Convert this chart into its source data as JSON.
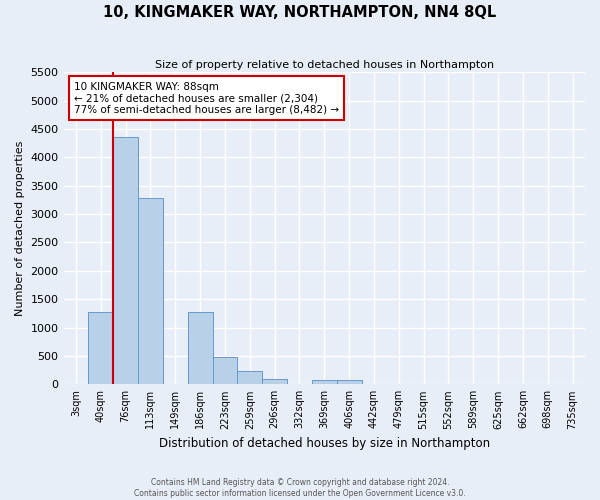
{
  "title": "10, KINGMAKER WAY, NORTHAMPTON, NN4 8QL",
  "subtitle": "Size of property relative to detached houses in Northampton",
  "xlabel": "Distribution of detached houses by size in Northampton",
  "ylabel": "Number of detached properties",
  "bin_labels": [
    "3sqm",
    "40sqm",
    "76sqm",
    "113sqm",
    "149sqm",
    "186sqm",
    "223sqm",
    "259sqm",
    "296sqm",
    "332sqm",
    "369sqm",
    "406sqm",
    "442sqm",
    "479sqm",
    "515sqm",
    "552sqm",
    "589sqm",
    "625sqm",
    "662sqm",
    "698sqm",
    "735sqm"
  ],
  "bar_values": [
    0,
    1270,
    4350,
    3280,
    0,
    1270,
    480,
    240,
    100,
    0,
    70,
    70,
    0,
    0,
    0,
    0,
    0,
    0,
    0,
    0,
    0
  ],
  "bar_color": "#b8d0e8",
  "bar_edge_color": "#6699cc",
  "vline_x_index": 2,
  "vline_color": "#cc0000",
  "ylim": [
    0,
    5500
  ],
  "yticks": [
    0,
    500,
    1000,
    1500,
    2000,
    2500,
    3000,
    3500,
    4000,
    4500,
    5000,
    5500
  ],
  "annotation_title": "10 KINGMAKER WAY: 88sqm",
  "annotation_line1": "← 21% of detached houses are smaller (2,304)",
  "annotation_line2": "77% of semi-detached houses are larger (8,482) →",
  "annotation_box_color": "#ffffff",
  "annotation_box_edge": "#cc0000",
  "footer_line1": "Contains HM Land Registry data © Crown copyright and database right 2024.",
  "footer_line2": "Contains public sector information licensed under the Open Government Licence v3.0.",
  "bg_color": "#e8eef8",
  "grid_color": "#ffffff",
  "figsize": [
    6.0,
    5.0
  ],
  "dpi": 100
}
